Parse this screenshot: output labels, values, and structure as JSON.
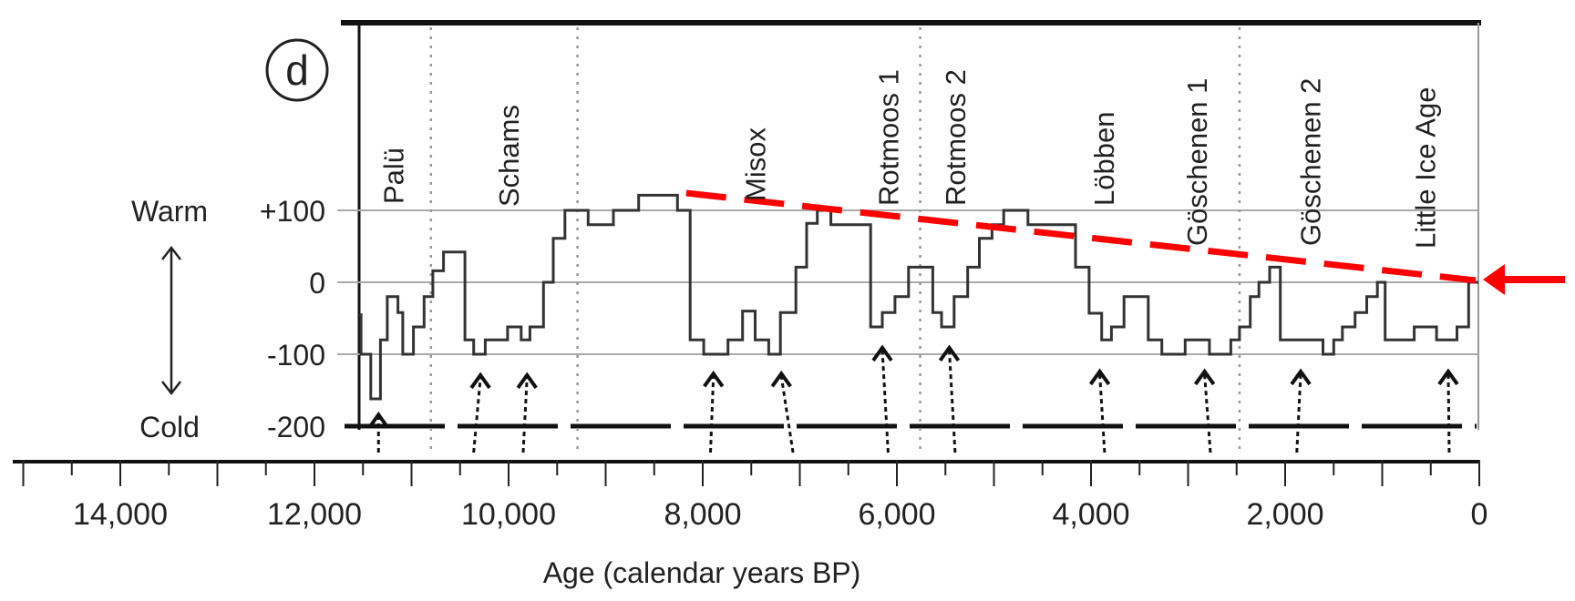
{
  "chart_data": {
    "type": "line",
    "step": true,
    "panel_label": "d",
    "title": "",
    "xlabel": "Age (calendar years BP)",
    "ylabel": "",
    "xlim": [
      15000,
      0
    ],
    "ylim": [
      -200,
      100
    ],
    "x_ticks": [
      {
        "value": 14000,
        "label": "14,000"
      },
      {
        "value": 12000,
        "label": "12,000"
      },
      {
        "value": 10000,
        "label": "10,000"
      },
      {
        "value": 8000,
        "label": "8,000"
      },
      {
        "value": 6000,
        "label": "6,000"
      },
      {
        "value": 4000,
        "label": "4,000"
      },
      {
        "value": 2000,
        "label": "2,000"
      },
      {
        "value": 0,
        "label": "0"
      }
    ],
    "y_ticks": [
      {
        "value": 100,
        "label": "+100"
      },
      {
        "value": 0,
        "label": "0"
      },
      {
        "value": -100,
        "label": "-100"
      },
      {
        "value": -200,
        "label": "-200"
      }
    ],
    "y_annotations": {
      "warm": "Warm",
      "cold": "Cold"
    },
    "grid": {
      "horizontal": [
        100,
        0,
        -100
      ],
      "dashed_baseline": -200
    },
    "series": [
      {
        "steps": [
          [
            11540,
            -45
          ],
          [
            11520,
            -100
          ],
          [
            11420,
            -162
          ],
          [
            11320,
            -80
          ],
          [
            11250,
            -20
          ],
          [
            11140,
            -42
          ],
          [
            11090,
            -100
          ],
          [
            10980,
            -62
          ],
          [
            10870,
            -20
          ],
          [
            10780,
            16
          ],
          [
            10670,
            42
          ],
          [
            10450,
            -80
          ],
          [
            10360,
            -100
          ],
          [
            10240,
            -80
          ],
          [
            10010,
            -62
          ],
          [
            9870,
            -80
          ],
          [
            9780,
            -62
          ],
          [
            9640,
            0
          ],
          [
            9540,
            61
          ],
          [
            9420,
            100
          ],
          [
            9180,
            80
          ],
          [
            8920,
            100
          ],
          [
            8660,
            121
          ],
          [
            8260,
            100
          ],
          [
            8130,
            -80
          ],
          [
            7990,
            -100
          ],
          [
            7740,
            -80
          ],
          [
            7590,
            -40
          ],
          [
            7460,
            -80
          ],
          [
            7320,
            -100
          ],
          [
            7200,
            -42
          ],
          [
            7040,
            21
          ],
          [
            6930,
            82
          ],
          [
            6820,
            100
          ],
          [
            6680,
            80
          ],
          [
            6270,
            -62
          ],
          [
            6150,
            -42
          ],
          [
            6020,
            -20
          ],
          [
            5880,
            21
          ],
          [
            5630,
            -42
          ],
          [
            5540,
            -62
          ],
          [
            5410,
            -20
          ],
          [
            5270,
            21
          ],
          [
            5150,
            61
          ],
          [
            5020,
            80
          ],
          [
            4900,
            100
          ],
          [
            4650,
            80
          ],
          [
            4160,
            21
          ],
          [
            4020,
            -43
          ],
          [
            3890,
            -80
          ],
          [
            3790,
            -62
          ],
          [
            3660,
            -20
          ],
          [
            3410,
            -80
          ],
          [
            3270,
            -100
          ],
          [
            3030,
            -80
          ],
          [
            2780,
            -100
          ],
          [
            2560,
            -80
          ],
          [
            2470,
            -62
          ],
          [
            2360,
            -20
          ],
          [
            2270,
            0
          ],
          [
            2160,
            21
          ],
          [
            2050,
            -80
          ],
          [
            1610,
            -100
          ],
          [
            1500,
            -80
          ],
          [
            1410,
            -62
          ],
          [
            1280,
            -42
          ],
          [
            1160,
            -20
          ],
          [
            1050,
            0
          ],
          [
            970,
            -80
          ],
          [
            670,
            -62
          ],
          [
            440,
            -80
          ],
          [
            230,
            -62
          ],
          [
            110,
            0
          ]
        ],
        "end_age": 10,
        "color": "#333333"
      }
    ],
    "period_boundaries": [
      10800,
      9290,
      5760,
      2470
    ],
    "events": [
      {
        "label": "Palü",
        "age": 11190
      },
      {
        "label": "Schams",
        "age": 10000
      },
      {
        "label": "Misox",
        "age": 7460
      },
      {
        "label": "Rotmoos 1",
        "age": 6090
      },
      {
        "label": "Rotmoos 2",
        "age": 5400
      },
      {
        "label": "Löbben",
        "age": 3870
      },
      {
        "label": "Göschenen 1",
        "age": 2910
      },
      {
        "label": "Göschenen 2",
        "age": 1740
      },
      {
        "label": "Little Ice Age",
        "age": 560
      }
    ],
    "advance_arrows": [
      {
        "tip_age": 11340,
        "base_age": 11340,
        "tip_value": -184
      },
      {
        "tip_age": 10290,
        "base_age": 10360,
        "tip_value": -129
      },
      {
        "tip_age": 9810,
        "base_age": 9850,
        "tip_value": -129
      },
      {
        "tip_age": 7890,
        "base_age": 7920,
        "tip_value": -127
      },
      {
        "tip_age": 7190,
        "base_age": 7070,
        "tip_value": -127
      },
      {
        "tip_age": 6150,
        "base_age": 6090,
        "tip_value": -91
      },
      {
        "tip_age": 5460,
        "base_age": 5400,
        "tip_value": -91
      },
      {
        "tip_age": 3910,
        "base_age": 3860,
        "tip_value": -124
      },
      {
        "tip_age": 2830,
        "base_age": 2770,
        "tip_value": -124
      },
      {
        "tip_age": 1840,
        "base_age": 1880,
        "tip_value": -124
      },
      {
        "tip_age": 320,
        "base_age": 310,
        "tip_value": -124
      }
    ],
    "trend_line": {
      "from": [
        8170,
        124
      ],
      "to": [
        0,
        0
      ],
      "color": "#ff0000",
      "style": "dashed"
    },
    "pointer_arrow": {
      "target": [
        0,
        0
      ],
      "color": "#ff0000",
      "direction": "left"
    }
  }
}
